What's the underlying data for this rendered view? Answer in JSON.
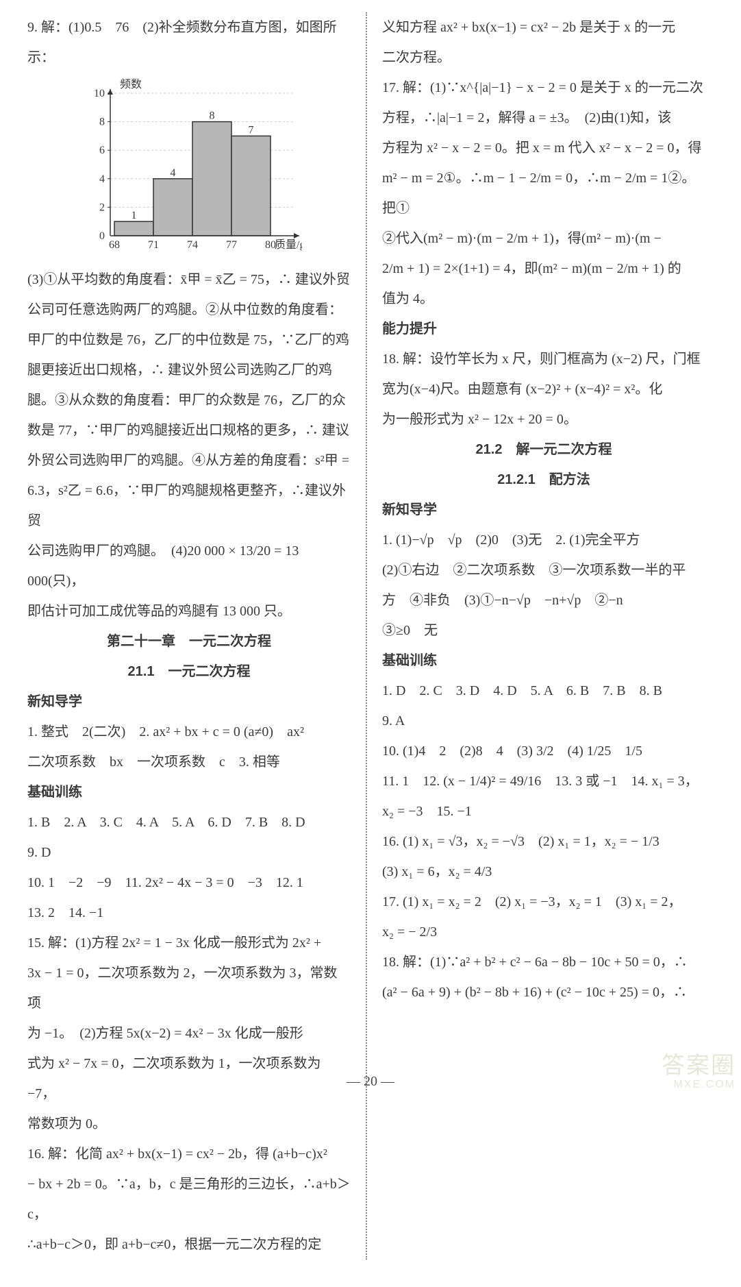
{
  "leftCol": {
    "q9a": "9. 解：(1)0.5　76　(2)补全频数分布直方图，如图所",
    "q9b": "示：",
    "chart": {
      "type": "bar",
      "ylabel": "频数",
      "xlabel": "质量/g",
      "x_ticks": [
        "68",
        "71",
        "74",
        "77",
        "80"
      ],
      "y_ticks": [
        "10",
        "8",
        "6",
        "4",
        "2",
        "0"
      ],
      "bars": [
        {
          "label": "1",
          "value": 1,
          "x": 0
        },
        {
          "label": "4",
          "value": 4,
          "x": 1
        },
        {
          "label": "8",
          "value": 8,
          "x": 2
        },
        {
          "label": "7",
          "value": 7,
          "x": 3
        }
      ],
      "bar_fill": "#b7b7b7",
      "bar_stroke": "#333333",
      "axis_color": "#333333",
      "grid_color": "#cccccc",
      "ylim": [
        0,
        10
      ],
      "fontsize": 16
    },
    "p3a": "(3)①从平均数的角度看：x̄甲 = x̄乙 = 75，∴ 建议外贸",
    "p3b": "公司可任意选购两厂的鸡腿。②从中位数的角度看：",
    "p3c": "甲厂的中位数是 76，乙厂的中位数是 75，∵乙厂的鸡",
    "p3d": "腿更接近出口规格，∴ 建议外贸公司选购乙厂的鸡",
    "p3e": "腿。③从众数的角度看：甲厂的众数是 76，乙厂的众",
    "p3f": "数是 77，∵甲厂的鸡腿接近出口规格的更多，∴ 建议",
    "p3g": "外贸公司选购甲厂的鸡腿。④从方差的角度看：s²甲 =",
    "p3h": "6.3，s²乙 = 6.6，∵甲厂的鸡腿规格更整齐，∴建议外贸",
    "p3i": "公司选购甲厂的鸡腿。　(4)20 000 × 13/20 = 13 000(只)，",
    "p3j": "即估计可加工成优等品的鸡腿有 13 000 只。",
    "h1": "第二十一章　一元二次方程",
    "h2": "21.1　一元二次方程",
    "sec1": "新知导学",
    "s1a": "1. 整式　2(二次)　2. ax² + bx + c = 0 (a≠0)　ax²",
    "s1b": "二次项系数　bx　一次项系数　c　3. 相等",
    "sec2": "基础训练",
    "b1": "1. B　2. A　3. C　4. A　5. A　6. D　7. B　8. D",
    "b2": "9. D",
    "b3": "10. 1　−2　−9　11. 2x² − 4x − 3 = 0　−3　12. 1",
    "b4": "13. 2　14. −1",
    "b15a": "15. 解：(1)方程 2x² = 1 − 3x 化成一般形式为 2x² +",
    "b15b": "3x − 1 = 0，二次项系数为 2，一次项系数为 3，常数项",
    "b15c": "为 −1。　(2)方程 5x(x−2) = 4x² − 3x 化成一般形",
    "b15d": "式为 x² − 7x = 0，二次项系数为 1，一次项系数为 −7，",
    "b15e": "常数项为 0。",
    "b16a": "16. 解：化简 ax² + bx(x−1) = cx² − 2b，得 (a+b−c)x²",
    "b16b": "− bx + 2b = 0。∵a，b，c 是三角形的三边长，∴a+b＞c，",
    "b16c": "∴a+b−c＞0，即 a+b−c≠0，根据一元二次方程的定"
  },
  "rightCol": {
    "r1a": "义知方程 ax² + bx(x−1) = cx² − 2b 是关于 x 的一元",
    "r1b": "二次方程。",
    "r17a": "17. 解：(1)∵x^{|a|−1} − x − 2 = 0 是关于 x 的一元二次",
    "r17b": "方程，∴|a|−1 = 2，解得 a = ±3。　(2)由(1)知，该",
    "r17c": "方程为 x² − x − 2 = 0。把 x = m 代入 x² − x − 2 = 0，得",
    "r17d": "m² − m = 2①。∴m − 1 − 2/m = 0，∴m − 2/m = 1②。把①",
    "r17e": "②代入(m² − m)·(m − 2/m + 1)，得(m² − m)·(m −",
    "r17f": "2/m + 1) = 2×(1+1) = 4，即(m² − m)(m − 2/m + 1) 的",
    "r17g": "值为 4。",
    "sec3": "能力提升",
    "r18a": "18. 解：设竹竿长为 x 尺，则门框高为 (x−2) 尺，门框",
    "r18b": "宽为(x−4)尺。由题意有 (x−2)² + (x−4)² = x²。化",
    "r18c": "为一般形式为 x² − 12x + 20 = 0。",
    "h3": "21.2　解一元二次方程",
    "h4": "21.2.1　配方法",
    "sec4": "新知导学",
    "n1": "1. (1)−√p　√p　(2)0　(3)无　2. (1)完全平方",
    "n2": "(2)①右边　②二次项系数　③一次项系数一半的平",
    "n3": "方　④非负　(3)①−n−√p　−n+√p　②−n",
    "n4": "③≥0　无",
    "sec5": "基础训练",
    "t1": "1. D　2. C　3. D　4. D　5. A　6. B　7. B　8. B",
    "t2": "9. A",
    "t10": "10. (1)4　2　(2)8　4　(3) 3/2　(4) 1/25　1/5",
    "t11": "11. 1　12. (x − 1/4)² = 49/16　13. 3 或 −1　14. x₁ = 3，",
    "t11b": "x₂ = −3　15. −1",
    "t16a": "16. (1) x₁ = √3，x₂ = −√3　(2) x₁ = 1，x₂ = − 1/3",
    "t16b": "(3) x₁ = 6，x₂ = 4/3",
    "t17a": "17. (1) x₁ = x₂ = 2　(2) x₁ = −3，x₂ = 1　(3) x₁ = 2，",
    "t17b": "x₂ = − 2/3",
    "t18a": "18. 解：(1)∵a² + b² + c² − 6a − 8b − 10c + 50 = 0，∴",
    "t18b": "(a² − 6a + 9) + (b² − 8b + 16) + (c² − 10c + 25) = 0，∴"
  },
  "footer": "— 20 —",
  "watermark_main": "答案圈",
  "watermark_sub": "MXE.COM"
}
